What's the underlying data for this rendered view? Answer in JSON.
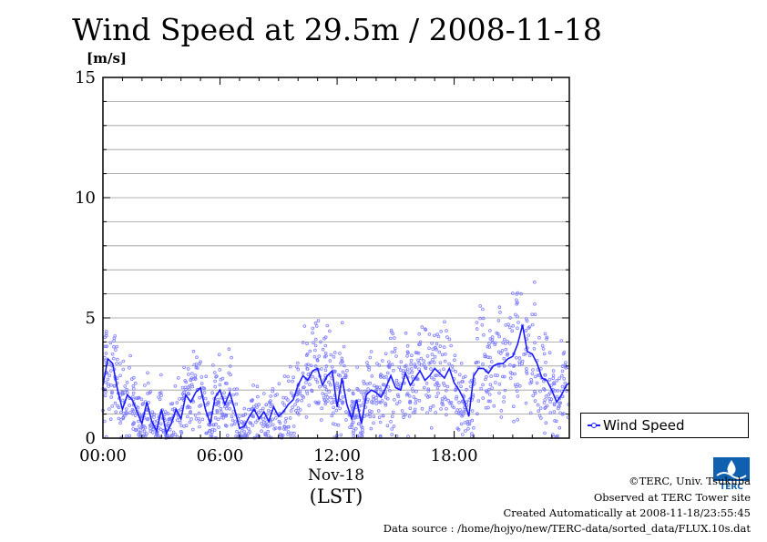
{
  "chart_data": {
    "type": "line",
    "title": "Wind Speed at 29.5m / 2008-11-18",
    "ylabel": "[m/s]",
    "xlabel_date": "Nov-18",
    "xlabel_tz": "(LST)",
    "ylim": [
      0,
      15
    ],
    "xlim_hours": [
      0,
      23.9
    ],
    "y_ticks": [
      "0",
      "5",
      "10",
      "15"
    ],
    "x_ticks": [
      {
        "hour": 0,
        "label": "00:00"
      },
      {
        "hour": 6,
        "label": "06:00"
      },
      {
        "hour": 12,
        "label": "12:00"
      },
      {
        "hour": 18,
        "label": "18:00"
      }
    ],
    "grid": true,
    "legend_position": "right",
    "series": [
      {
        "name": "Wind Speed",
        "color": "#1a1aff",
        "scatter_color": "#7b7bff",
        "hours": [
          0.0,
          0.25,
          0.5,
          0.75,
          1.0,
          1.25,
          1.5,
          1.75,
          2.0,
          2.25,
          2.5,
          2.75,
          3.0,
          3.25,
          3.5,
          3.75,
          4.0,
          4.25,
          4.5,
          4.75,
          5.0,
          5.25,
          5.5,
          5.75,
          6.0,
          6.25,
          6.5,
          6.75,
          7.0,
          7.25,
          7.5,
          7.75,
          8.0,
          8.25,
          8.5,
          8.75,
          9.0,
          9.25,
          9.5,
          9.75,
          10.0,
          10.25,
          10.5,
          10.75,
          11.0,
          11.25,
          11.5,
          11.75,
          12.0,
          12.25,
          12.5,
          12.75,
          13.0,
          13.25,
          13.5,
          13.75,
          14.0,
          14.25,
          14.5,
          14.75,
          15.0,
          15.25,
          15.5,
          15.75,
          16.0,
          16.25,
          16.5,
          16.75,
          17.0,
          17.25,
          17.5,
          17.75,
          18.0,
          18.25,
          18.5,
          18.75,
          19.0,
          19.25,
          19.5,
          19.75,
          20.0,
          20.25,
          20.5,
          20.75,
          21.0,
          21.25,
          21.5,
          21.75,
          22.0,
          22.25,
          22.5,
          22.75,
          23.0,
          23.25,
          23.5,
          23.75,
          23.9
        ],
        "values": [
          2.2,
          3.3,
          3.1,
          2.0,
          1.2,
          1.8,
          1.6,
          1.1,
          0.6,
          1.5,
          0.7,
          0.3,
          1.2,
          0.2,
          0.6,
          1.2,
          0.8,
          1.8,
          1.5,
          1.9,
          2.1,
          1.2,
          0.6,
          1.7,
          2.0,
          1.4,
          1.9,
          1.2,
          0.4,
          0.5,
          0.9,
          1.2,
          0.8,
          1.1,
          0.7,
          1.3,
          0.9,
          1.1,
          1.4,
          1.6,
          2.2,
          2.6,
          2.4,
          2.8,
          2.9,
          2.2,
          2.6,
          2.8,
          1.3,
          2.5,
          1.4,
          0.8,
          1.6,
          0.6,
          1.8,
          2.0,
          1.9,
          1.7,
          2.1,
          2.6,
          2.1,
          2.0,
          2.7,
          2.2,
          2.5,
          2.8,
          2.4,
          2.6,
          2.9,
          2.7,
          2.5,
          2.9,
          2.3,
          2.0,
          1.6,
          0.9,
          2.6,
          2.9,
          2.9,
          2.7,
          3.0,
          3.1,
          3.1,
          3.3,
          3.4,
          3.9,
          4.7,
          3.6,
          3.5,
          3.1,
          2.5,
          2.4,
          2.0,
          1.5,
          1.8,
          2.2,
          2.3
        ]
      }
    ]
  },
  "footer": {
    "copyright": "©TERC, Univ. Tsukuba",
    "observed": "Observed at TERC Tower site",
    "created": "Created Automatically at 2008-11-18/23:55:45",
    "source": "Data source : /home/hojyo/new/TERC-data/sorted_data/FLUX.10s.dat"
  },
  "logo_icon": "terc-logo-icon",
  "logo_text": "TERC"
}
